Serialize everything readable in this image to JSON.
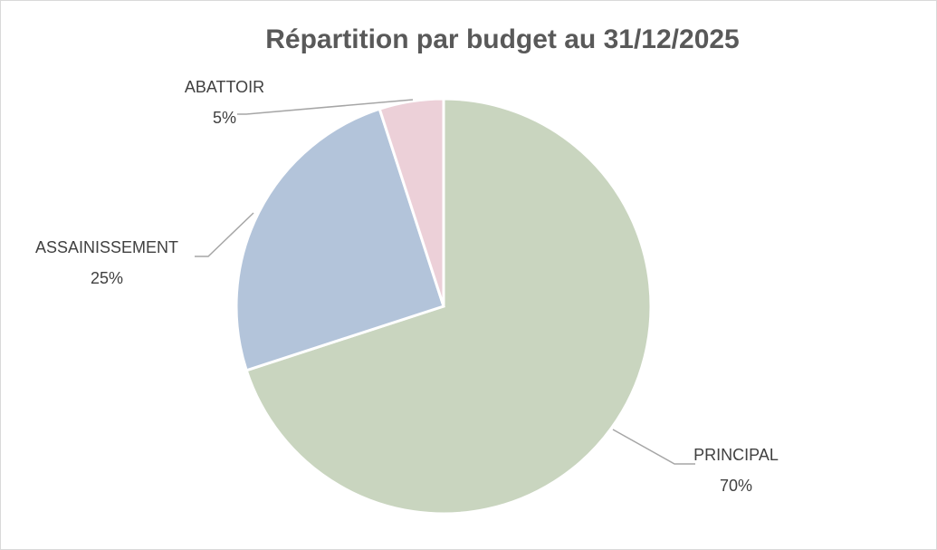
{
  "chart_data": {
    "type": "pie",
    "title": "Répartition par budget au 31/12/2025",
    "categories": [
      "PRINCIPAL",
      "ASSAINISSEMENT",
      "ABATTOIR"
    ],
    "values": [
      70,
      25,
      5
    ],
    "value_labels": [
      "70%",
      "25%",
      "5%"
    ],
    "colors": [
      "#c9d5bf",
      "#b3c4da",
      "#ecd0d8"
    ]
  }
}
